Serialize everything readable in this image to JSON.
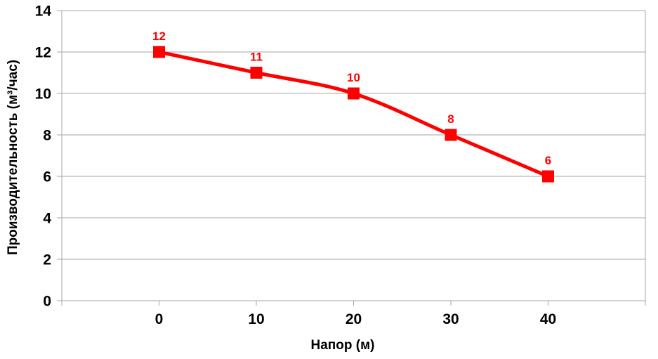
{
  "chart_data": {
    "type": "line",
    "title": "",
    "x": [
      0,
      10,
      20,
      30,
      40
    ],
    "series": [
      {
        "values": [
          12,
          11,
          10,
          8,
          6
        ],
        "data_labels": [
          "12",
          "11",
          "10",
          "8",
          "6"
        ],
        "color": "#ff0000",
        "marker": "square",
        "smooth": true
      }
    ],
    "xlabel": "Напор (м)",
    "ylabel": "Производительность (м³/час)",
    "xlim": [
      -10,
      50
    ],
    "ylim": [
      0,
      14
    ],
    "xticks": [
      0,
      10,
      20,
      30,
      40
    ],
    "xtick_labels": [
      "0",
      "10",
      "20",
      "30",
      "40"
    ],
    "yticks": [
      0,
      2,
      4,
      6,
      8,
      10,
      12,
      14
    ],
    "ytick_labels": [
      "0",
      "2",
      "4",
      "6",
      "8",
      "10",
      "12",
      "14"
    ],
    "grid": "horizontal",
    "legend": "none",
    "colors": {
      "series": "#ff0000",
      "grid": "#a6a6a6",
      "text": "#000000",
      "background": "#ffffff"
    }
  }
}
